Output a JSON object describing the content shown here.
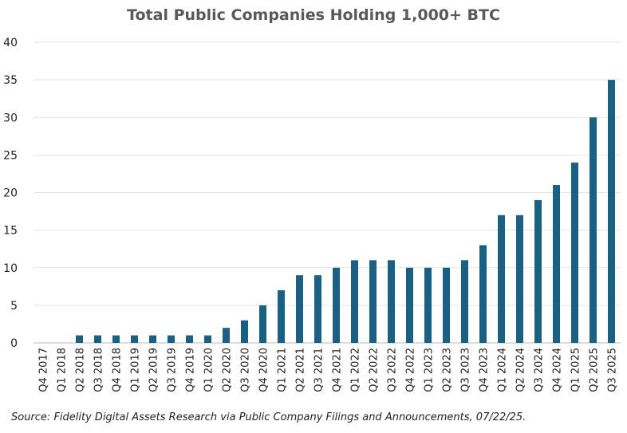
{
  "chart_data": {
    "type": "bar",
    "title": "Total Public Companies Holding 1,000+ BTC",
    "xlabel": "",
    "ylabel": "",
    "ylim": [
      0,
      40
    ],
    "yticks": [
      0,
      5,
      10,
      15,
      20,
      25,
      30,
      35,
      40
    ],
    "grid": true,
    "bar_color": "#1a6082",
    "categories": [
      "Q4 2017",
      "Q1 2018",
      "Q2 2018",
      "Q3 2018",
      "Q4 2018",
      "Q1 2019",
      "Q2 2019",
      "Q3 2019",
      "Q4 2019",
      "Q1 2020",
      "Q2 2020",
      "Q3 2020",
      "Q4 2020",
      "Q1 2021",
      "Q2 2021",
      "Q3 2021",
      "Q4 2021",
      "Q1 2022",
      "Q2 2022",
      "Q3 2022",
      "Q4 2022",
      "Q1 2023",
      "Q2 2023",
      "Q3 2023",
      "Q4 2023",
      "Q1 2024",
      "Q2 2024",
      "Q3 2024",
      "Q4 2024",
      "Q1 2025",
      "Q2 2025",
      "Q3 2025"
    ],
    "values": [
      0,
      0,
      1,
      1,
      1,
      1,
      1,
      1,
      1,
      1,
      2,
      3,
      5,
      7,
      9,
      9,
      10,
      11,
      11,
      11,
      10,
      10,
      10,
      11,
      13,
      17,
      17,
      19,
      21,
      24,
      30,
      35
    ]
  },
  "source": "Source: Fidelity Digital Assets Research via Public Company Filings and Announcements, 07/22/25."
}
